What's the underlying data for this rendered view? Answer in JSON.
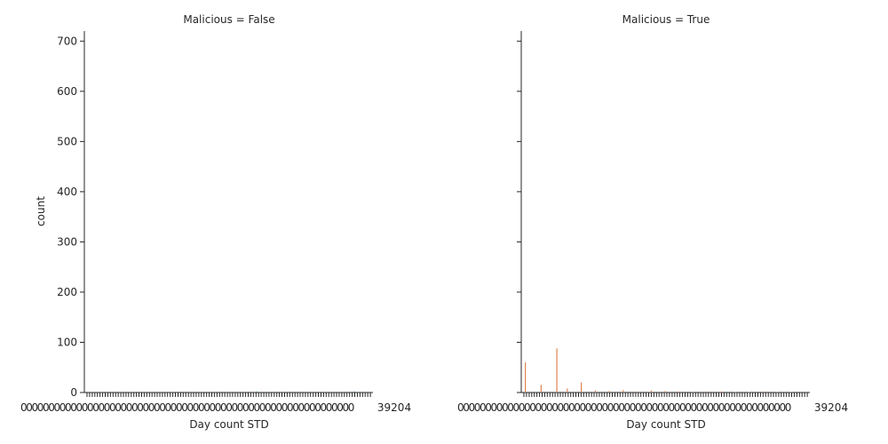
{
  "chart_data": {
    "type": "bar",
    "panels": [
      {
        "title": "Malicious = False",
        "xlabel": "Day count STD",
        "ylabel": "count",
        "color": "#1f77b4",
        "values": [
          1,
          1,
          0,
          1,
          1,
          0,
          1,
          0,
          1,
          1,
          0,
          1,
          2,
          0,
          1,
          0,
          1,
          1,
          0,
          2
        ]
      },
      {
        "title": "Malicious = True",
        "xlabel": "Day count STD",
        "ylabel": "",
        "color": "#dd8452",
        "values": [
          60,
          15,
          88,
          8,
          20,
          4,
          3,
          5,
          2,
          4,
          3,
          2,
          1,
          2,
          2,
          1,
          1,
          2,
          1,
          1
        ]
      }
    ],
    "yticks": [
      0,
      100,
      200,
      300,
      400,
      500,
      600,
      700
    ],
    "ylim": [
      0,
      720
    ],
    "xtick_label_fragment": "0",
    "xtick_end_label": "39204",
    "sharey": true,
    "grid": false
  }
}
